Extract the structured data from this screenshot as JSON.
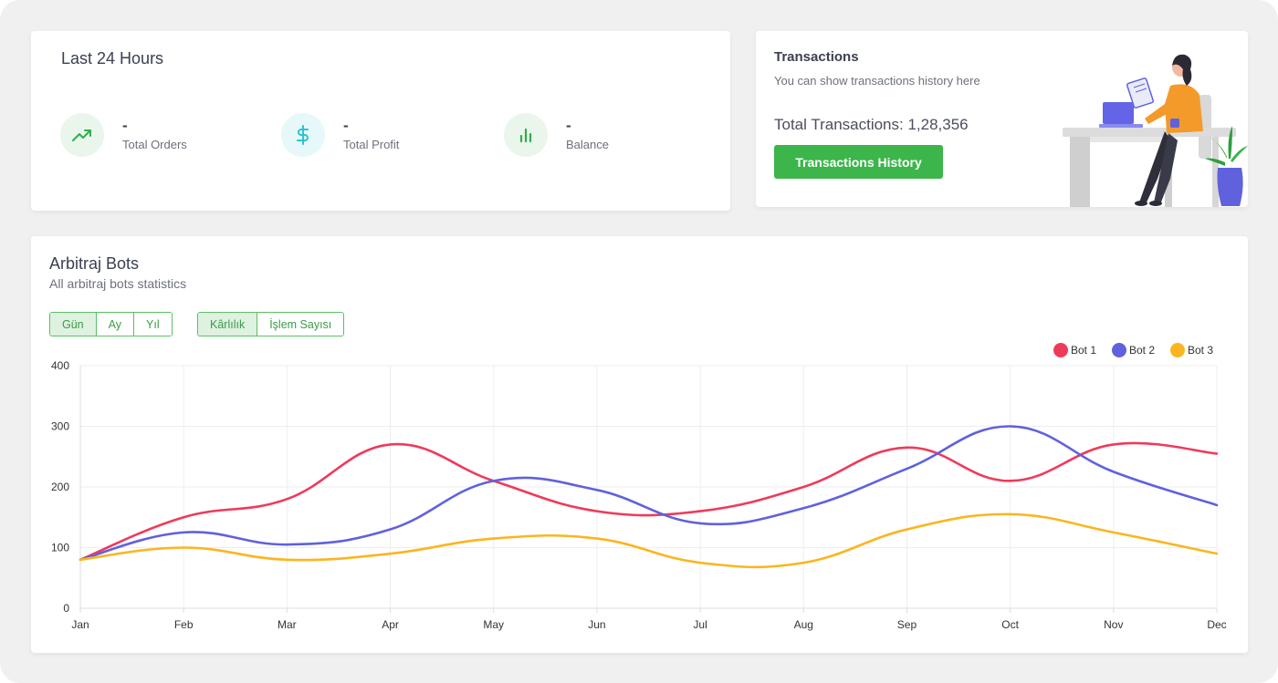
{
  "last24": {
    "title": "Last 24 Hours",
    "stats": [
      {
        "value": "-",
        "label": "Total Orders",
        "icon": "trending-up-icon",
        "color": "#2db04a",
        "bg": "#eaf6ec"
      },
      {
        "value": "-",
        "label": "Total Profit",
        "icon": "dollar-icon",
        "color": "#2ec2d6",
        "bg": "#e6f8fa"
      },
      {
        "value": "-",
        "label": "Balance",
        "icon": "bar-chart-icon",
        "color": "#2db04a",
        "bg": "#eaf6ec"
      }
    ]
  },
  "transactions": {
    "title": "Transactions",
    "subtitle": "You can show transactions history here",
    "total": "Total Transactions: 1,28,356",
    "button_label": "Transactions History"
  },
  "arbitraj": {
    "title": "Arbitraj Bots",
    "subtitle": "All arbitraj bots statistics",
    "period_buttons": [
      "Gün",
      "Ay",
      "Yıl"
    ],
    "period_active": "Gün",
    "metric_buttons": [
      "Kârlılık",
      "İşlem Sayısı"
    ],
    "metric_active": "Kârlılık"
  },
  "colors": {
    "accent_green": "#3cb54a",
    "bot1": "#ef3a5a",
    "bot2": "#6061dd",
    "bot3": "#fbb520"
  },
  "chart_data": {
    "type": "line",
    "x": [
      "Jan",
      "Feb",
      "Mar",
      "Apr",
      "May",
      "Jun",
      "Jul",
      "Aug",
      "Sep",
      "Oct",
      "Nov",
      "Dec"
    ],
    "y_ticks": [
      0,
      100,
      200,
      300,
      400
    ],
    "ylim": [
      0,
      400
    ],
    "grid": true,
    "legend": "top-right",
    "series": [
      {
        "name": "Bot 1",
        "color": "#ef3a5a",
        "values": [
          80,
          150,
          180,
          270,
          210,
          160,
          160,
          200,
          265,
          210,
          270,
          255
        ]
      },
      {
        "name": "Bot 2",
        "color": "#6061dd",
        "values": [
          80,
          125,
          105,
          130,
          210,
          195,
          140,
          165,
          230,
          300,
          225,
          170
        ]
      },
      {
        "name": "Bot 3",
        "color": "#fbb520",
        "values": [
          80,
          100,
          80,
          90,
          115,
          115,
          75,
          75,
          130,
          155,
          125,
          90
        ]
      }
    ]
  }
}
